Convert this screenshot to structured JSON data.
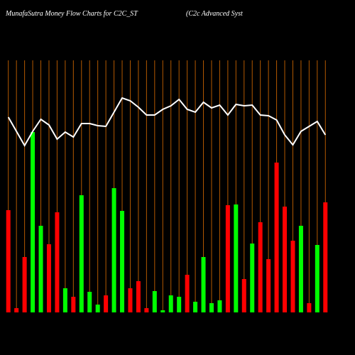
{
  "chart_data": {
    "type": "bar",
    "title": "MunafaSutra  Money Flow  Charts for C2C_ST",
    "subtitle": "(C2c Advanced Syst",
    "series": [
      {
        "name": null,
        "values": [
          144,
          6,
          78,
          254,
          122,
          96,
          141,
          34,
          22,
          165,
          29,
          11,
          24,
          175,
          143,
          34,
          44,
          6,
          30,
          3,
          24,
          22,
          53,
          15,
          78,
          13,
          17,
          151,
          152,
          47,
          97,
          127,
          75,
          211,
          149,
          101,
          122,
          13,
          95,
          155
        ],
        "colors": [
          "#ff0000",
          "#ff0000",
          "#ff0000",
          "#00ff00",
          "#00ff00",
          "#ff0000",
          "#ff0000",
          "#00ff00",
          "#ff0000",
          "#00ff00",
          "#00ff00",
          "#00ff00",
          "#ff0000",
          "#00ff00",
          "#00ff00",
          "#ff0000",
          "#ff0000",
          "#ff0000",
          "#00ff00",
          "#00ff00",
          "#00ff00",
          "#00ff00",
          "#ff0000",
          "#00ff00",
          "#00ff00",
          "#00ff00",
          "#00ff00",
          "#ff0000",
          "#00ff00",
          "#ff0000",
          "#00ff00",
          "#ff0000",
          "#ff0000",
          "#ff0000",
          "#ff0000",
          "#ff0000",
          "#00ff00",
          "#ff0000",
          "#00ff00",
          "#ff0000"
        ]
      },
      {
        "name": null,
        "type": "line",
        "color": "#ffffff",
        "values": [
          275,
          255,
          235,
          255,
          272,
          264,
          244,
          254,
          247,
          266,
          266,
          263,
          262,
          282,
          302,
          298,
          289,
          278,
          278,
          286,
          291,
          300,
          286,
          282,
          296,
          288,
          292,
          278,
          293,
          291,
          292,
          278,
          277,
          271,
          250,
          236,
          255,
          262,
          269,
          250
        ]
      }
    ],
    "ylim": [
      0,
      355
    ],
    "gridline_color": "#b35900"
  }
}
